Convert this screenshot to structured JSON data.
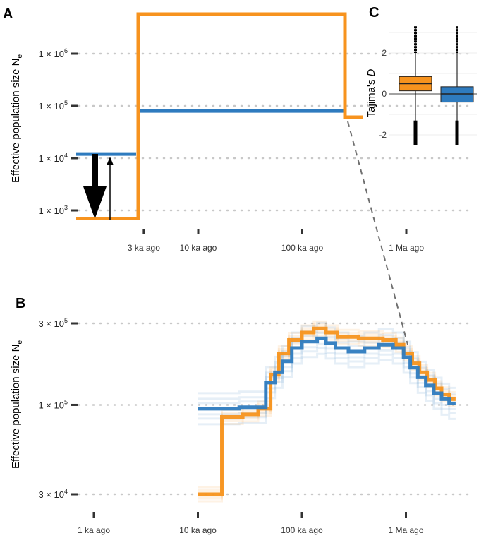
{
  "chart_data": [
    {
      "panel": "A",
      "type": "line",
      "ylabel": "Effective population size N",
      "ylabel_sub": "e",
      "yscale": "log",
      "yticks": [
        {
          "value": 1000,
          "label": "1 × 10",
          "exp": "3"
        },
        {
          "value": 10000,
          "label": "1 × 10",
          "exp": "4"
        },
        {
          "value": 100000,
          "label": "1 × 10",
          "exp": "5"
        },
        {
          "value": 1000000,
          "label": "1 × 10",
          "exp": "6"
        }
      ],
      "xticks": [
        "3 ka ago",
        "10 ka ago",
        "100 ka ago",
        "1 Ma ago"
      ],
      "series": [
        {
          "color": "#f7931e",
          "steps": [
            {
              "x": "3 ka ago",
              "x_end": "~5 ka ago",
              "y": 700
            },
            {
              "x": "~5 ka ago",
              "x_end": "~200 ka ago",
              "y": 5000000
            },
            {
              "x": "~200 ka ago",
              "x_end": "~300 ka ago",
              "y": 60000
            }
          ]
        },
        {
          "color": "#2e7bbf",
          "steps": [
            {
              "x": "3 ka ago",
              "x_end": "~5 ka ago",
              "y": 12000
            },
            {
              "x": "~5 ka ago",
              "x_end": "~200 ka ago",
              "y": 80000
            }
          ]
        }
      ],
      "annotations": [
        "thick downward arrow: decline from 1.2 × 10^4 to 7 × 10^2",
        "thin upward arrow"
      ],
      "grid": "horizontal dotted"
    },
    {
      "panel": "B",
      "type": "line",
      "ylabel": "Effective population size N",
      "ylabel_sub": "e",
      "yscale": "log",
      "yticks": [
        {
          "value": 30000,
          "label": "3 × 10",
          "exp": "4"
        },
        {
          "value": 100000,
          "label": "1 × 10",
          "exp": "5"
        },
        {
          "value": 300000,
          "label": "3 × 10",
          "exp": "5"
        }
      ],
      "xticks": [
        "1 ka ago",
        "10 ka ago",
        "100 ka ago",
        "1 Ma ago"
      ],
      "series": [
        {
          "color": "#f7931e",
          "points": [
            [
              10000,
              30000
            ],
            [
              17000,
              30000
            ],
            [
              17000,
              85000
            ],
            [
              27000,
              85000
            ],
            [
              27000,
              88000
            ],
            [
              38000,
              88000
            ],
            [
              38000,
              95000
            ],
            [
              50000,
              95000
            ],
            [
              50000,
              150000
            ],
            [
              60000,
              150000
            ],
            [
              60000,
              200000
            ],
            [
              75000,
              200000
            ],
            [
              75000,
              240000
            ],
            [
              100000,
              240000
            ],
            [
              100000,
              265000
            ],
            [
              130000,
              265000
            ],
            [
              130000,
              280000
            ],
            [
              170000,
              280000
            ],
            [
              170000,
              265000
            ],
            [
              220000,
              265000
            ],
            [
              220000,
              250000
            ],
            [
              350000,
              250000
            ],
            [
              350000,
              245000
            ],
            [
              600000,
              245000
            ],
            [
              600000,
              240000
            ],
            [
              800000,
              240000
            ],
            [
              800000,
              225000
            ],
            [
              950000,
              225000
            ],
            [
              950000,
              200000
            ],
            [
              1150000,
              200000
            ],
            [
              1150000,
              175000
            ],
            [
              1350000,
              175000
            ],
            [
              1350000,
              155000
            ],
            [
              1600000,
              155000
            ],
            [
              1600000,
              140000
            ],
            [
              1900000,
              140000
            ],
            [
              1900000,
              125000
            ],
            [
              2200000,
              125000
            ],
            [
              2200000,
              115000
            ],
            [
              2600000,
              115000
            ],
            [
              2600000,
              108000
            ],
            [
              3000000,
              108000
            ]
          ]
        },
        {
          "color": "#2e7bbf",
          "points": [
            [
              10000,
              95000
            ],
            [
              25000,
              95000
            ],
            [
              25000,
              97000
            ],
            [
              45000,
              97000
            ],
            [
              45000,
              135000
            ],
            [
              55000,
              135000
            ],
            [
              55000,
              155000
            ],
            [
              65000,
              155000
            ],
            [
              65000,
              180000
            ],
            [
              80000,
              180000
            ],
            [
              80000,
              215000
            ],
            [
              100000,
              215000
            ],
            [
              100000,
              235000
            ],
            [
              140000,
              235000
            ],
            [
              140000,
              245000
            ],
            [
              170000,
              245000
            ],
            [
              170000,
              230000
            ],
            [
              210000,
              230000
            ],
            [
              210000,
              215000
            ],
            [
              280000,
              215000
            ],
            [
              280000,
              205000
            ],
            [
              400000,
              205000
            ],
            [
              400000,
              215000
            ],
            [
              550000,
              215000
            ],
            [
              550000,
              225000
            ],
            [
              750000,
              225000
            ],
            [
              750000,
              215000
            ],
            [
              950000,
              215000
            ],
            [
              950000,
              190000
            ],
            [
              1100000,
              190000
            ],
            [
              1100000,
              165000
            ],
            [
              1300000,
              165000
            ],
            [
              1300000,
              145000
            ],
            [
              1550000,
              145000
            ],
            [
              1550000,
              130000
            ],
            [
              1850000,
              130000
            ],
            [
              1850000,
              117000
            ],
            [
              2200000,
              117000
            ],
            [
              2200000,
              108000
            ],
            [
              2600000,
              108000
            ],
            [
              2600000,
              102000
            ],
            [
              3000000,
              102000
            ]
          ]
        }
      ],
      "grid": "horizontal dotted"
    },
    {
      "panel": "C",
      "type": "box",
      "ylabel": "Tajima's ",
      "ylabel_italic": "D",
      "yticks": [
        -2,
        0,
        2
      ],
      "series": [
        {
          "color": "#f7931e",
          "median": 0.5,
          "q1": 0.15,
          "q3": 0.85,
          "whisker_low": -2.5,
          "whisker_high": 3.3
        },
        {
          "color": "#2e7bbf",
          "median": 0.0,
          "q1": -0.4,
          "q3": 0.35,
          "whisker_low": -2.5,
          "whisker_high": 3.3
        }
      ],
      "reference_line": 0
    }
  ],
  "panel_letters": [
    "A",
    "B",
    "C"
  ]
}
